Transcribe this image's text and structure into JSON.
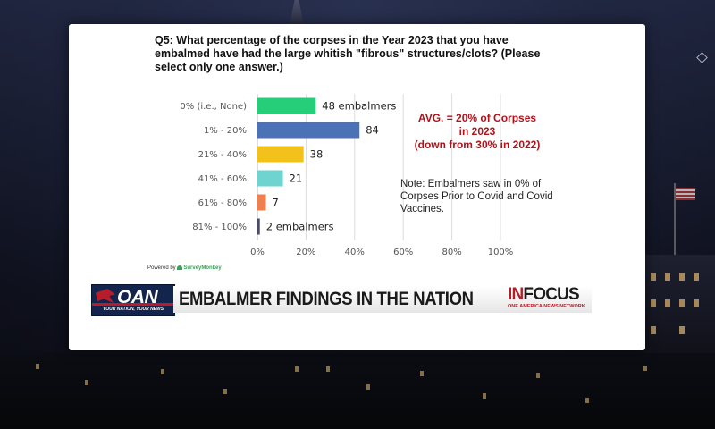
{
  "chart_data": {
    "type": "bar",
    "orientation": "horizontal",
    "title": "Q5: What percentage of the corpses in the Year 2023 that you have embalmed have had the large whitish \"fibrous\" structures/clots? (Please select only one answer.)",
    "categories": [
      "0% (i.e., None)",
      "1% - 20%",
      "21% - 40%",
      "41% - 60%",
      "61% - 80%",
      "81% - 100%"
    ],
    "values": [
      48,
      84,
      38,
      21,
      7,
      2
    ],
    "value_labels": [
      "48 embalmers",
      "84",
      "38",
      "21",
      "7",
      "2 embalmers"
    ],
    "colors": [
      "#27ce7a",
      "#4b72b6",
      "#f2c21b",
      "#6fd4cf",
      "#ef7f4f",
      "#4a4a66"
    ],
    "percent_of_total": [
      24,
      42,
      19,
      10.5,
      3.5,
      1
    ],
    "xlim": [
      0,
      100
    ],
    "x_ticks": [
      "0%",
      "20%",
      "40%",
      "60%",
      "80%",
      "100%"
    ],
    "grid": true,
    "annotations": {
      "avg": [
        "AVG. = 20% of Corpses",
        "in 2023",
        "(down from 30% in 2022)"
      ],
      "note": "Note: Embalmers saw in 0% of Corpses Prior to Covid and Covid Vaccines."
    }
  },
  "powered_by": {
    "prefix": "Powered by",
    "brand": "SurveyMonkey"
  },
  "lower_third": {
    "logo_text": "OAN",
    "logo_tagline": "YOUR NATION, YOUR NEWS",
    "headline": "EMBALMER FINDINGS IN THE NATION",
    "segment_prefix": "IN",
    "segment_main": "FOCUS",
    "segment_sub": "ONE AMERICA NEWS NETWORK"
  }
}
